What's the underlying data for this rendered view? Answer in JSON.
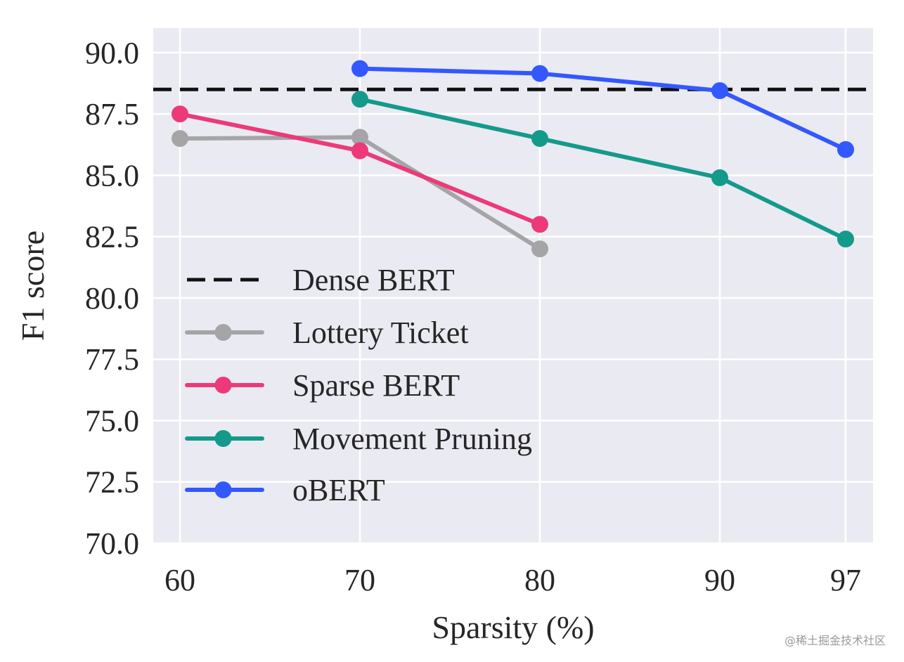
{
  "chart_data": {
    "type": "line",
    "title": "",
    "xlabel": "Sparsity (%)",
    "ylabel": "F1 score",
    "x_categories": [
      "60",
      "70",
      "80",
      "90",
      "97"
    ],
    "ylim": [
      70,
      91
    ],
    "yticks": [
      "70.0",
      "72.5",
      "75.0",
      "77.5",
      "80.0",
      "82.5",
      "85.0",
      "87.5",
      "90.0"
    ],
    "grid": true,
    "legend_position": "center-left",
    "reference_line": {
      "name": "Dense BERT",
      "value": 88.5,
      "color": "#111111",
      "style": "dashed"
    },
    "series": [
      {
        "name": "Lottery Ticket",
        "color": "#a5a5a8",
        "points": [
          {
            "x": "60",
            "y": 86.5
          },
          {
            "x": "70",
            "y": 86.55
          },
          {
            "x": "80",
            "y": 82.0
          }
        ]
      },
      {
        "name": "Sparse BERT",
        "color": "#ec3a78",
        "points": [
          {
            "x": "60",
            "y": 87.5
          },
          {
            "x": "70",
            "y": 86.0
          },
          {
            "x": "80",
            "y": 83.0
          }
        ]
      },
      {
        "name": "Movement Pruning",
        "color": "#149a8a",
        "points": [
          {
            "x": "70",
            "y": 88.1
          },
          {
            "x": "80",
            "y": 86.5
          },
          {
            "x": "90",
            "y": 84.9
          },
          {
            "x": "97",
            "y": 82.4
          }
        ]
      },
      {
        "name": "oBERT",
        "color": "#3358ff",
        "points": [
          {
            "x": "70",
            "y": 89.35
          },
          {
            "x": "80",
            "y": 89.15
          },
          {
            "x": "90",
            "y": 88.45
          },
          {
            "x": "97",
            "y": 86.05
          }
        ]
      }
    ]
  },
  "watermark": "@稀土掘金技术社区"
}
